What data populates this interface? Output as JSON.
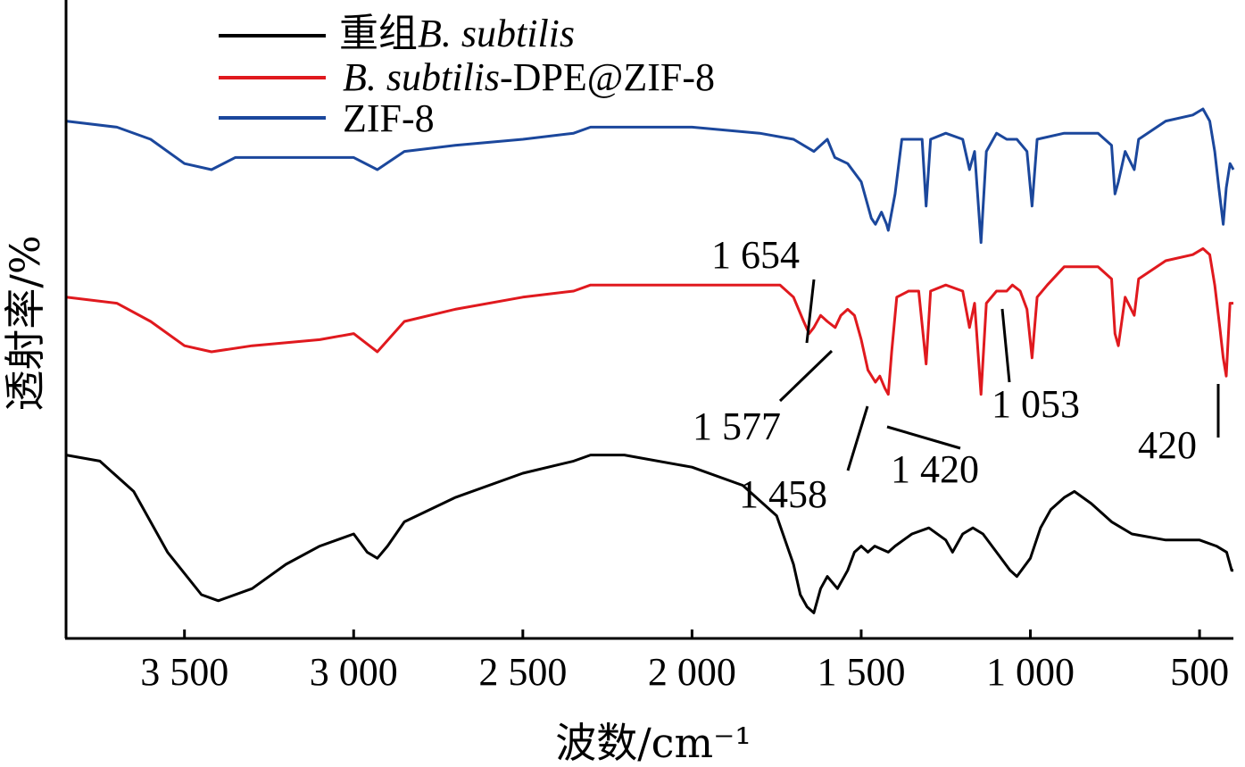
{
  "chart_data": {
    "type": "line",
    "title": "",
    "xlabel": "波数/cm⁻¹",
    "ylabel": "透射率/%",
    "xlim": [
      3850,
      400
    ],
    "x_reversed": true,
    "y_ticks_shown": false,
    "xticks": [
      {
        "value": 3500,
        "label": "3 500"
      },
      {
        "value": 3000,
        "label": "3 000"
      },
      {
        "value": 2500,
        "label": "2 500"
      },
      {
        "value": 2000,
        "label": "2 000"
      },
      {
        "value": 1500,
        "label": "1 500"
      },
      {
        "value": 1000,
        "label": "1 000"
      },
      {
        "value": 500,
        "label": "500"
      }
    ],
    "legend": {
      "placement": "top-left",
      "entries": [
        {
          "prefix": "重组",
          "italic": "B. subtilis",
          "suffix": "",
          "color": "#000000"
        },
        {
          "prefix": "",
          "italic": "B. subtilis",
          "suffix": "-DPE@ZIF-8",
          "color": "#e0191e"
        },
        {
          "prefix": "",
          "italic": "",
          "suffix": "ZIF-8",
          "color": "#1b479c"
        }
      ]
    },
    "series": [
      {
        "name": "ZIF-8",
        "color": "#1b479c",
        "points": [
          [
            3850,
            0.83
          ],
          [
            3700,
            0.82
          ],
          [
            3600,
            0.8
          ],
          [
            3500,
            0.76
          ],
          [
            3420,
            0.75
          ],
          [
            3350,
            0.77
          ],
          [
            3200,
            0.77
          ],
          [
            3000,
            0.77
          ],
          [
            2930,
            0.75
          ],
          [
            2850,
            0.78
          ],
          [
            2700,
            0.79
          ],
          [
            2500,
            0.8
          ],
          [
            2350,
            0.81
          ],
          [
            2300,
            0.82
          ],
          [
            2000,
            0.82
          ],
          [
            1800,
            0.81
          ],
          [
            1700,
            0.8
          ],
          [
            1640,
            0.78
          ],
          [
            1600,
            0.8
          ],
          [
            1578,
            0.77
          ],
          [
            1540,
            0.76
          ],
          [
            1500,
            0.73
          ],
          [
            1470,
            0.67
          ],
          [
            1458,
            0.66
          ],
          [
            1440,
            0.68
          ],
          [
            1425,
            0.66
          ],
          [
            1420,
            0.65
          ],
          [
            1400,
            0.71
          ],
          [
            1380,
            0.8
          ],
          [
            1350,
            0.8
          ],
          [
            1320,
            0.8
          ],
          [
            1308,
            0.69
          ],
          [
            1295,
            0.8
          ],
          [
            1250,
            0.81
          ],
          [
            1200,
            0.8
          ],
          [
            1180,
            0.75
          ],
          [
            1165,
            0.78
          ],
          [
            1146,
            0.63
          ],
          [
            1130,
            0.78
          ],
          [
            1100,
            0.81
          ],
          [
            1070,
            0.8
          ],
          [
            1040,
            0.8
          ],
          [
            1010,
            0.78
          ],
          [
            995,
            0.69
          ],
          [
            980,
            0.8
          ],
          [
            900,
            0.81
          ],
          [
            800,
            0.81
          ],
          [
            760,
            0.79
          ],
          [
            750,
            0.71
          ],
          [
            740,
            0.73
          ],
          [
            720,
            0.78
          ],
          [
            693,
            0.75
          ],
          [
            680,
            0.8
          ],
          [
            600,
            0.83
          ],
          [
            520,
            0.84
          ],
          [
            490,
            0.85
          ],
          [
            470,
            0.83
          ],
          [
            455,
            0.78
          ],
          [
            443,
            0.72
          ],
          [
            430,
            0.66
          ],
          [
            421,
            0.72
          ],
          [
            410,
            0.76
          ],
          [
            400,
            0.75
          ]
        ]
      },
      {
        "name": "B. subtilis-DPE@ZIF-8",
        "color": "#e0191e",
        "points": [
          [
            3850,
            0.54
          ],
          [
            3700,
            0.53
          ],
          [
            3600,
            0.5
          ],
          [
            3500,
            0.46
          ],
          [
            3420,
            0.45
          ],
          [
            3300,
            0.46
          ],
          [
            3100,
            0.47
          ],
          [
            3000,
            0.48
          ],
          [
            2930,
            0.45
          ],
          [
            2850,
            0.5
          ],
          [
            2700,
            0.52
          ],
          [
            2500,
            0.54
          ],
          [
            2350,
            0.55
          ],
          [
            2300,
            0.56
          ],
          [
            2000,
            0.56
          ],
          [
            1800,
            0.56
          ],
          [
            1740,
            0.56
          ],
          [
            1700,
            0.54
          ],
          [
            1670,
            0.5
          ],
          [
            1654,
            0.48
          ],
          [
            1640,
            0.49
          ],
          [
            1620,
            0.51
          ],
          [
            1600,
            0.5
          ],
          [
            1577,
            0.49
          ],
          [
            1560,
            0.51
          ],
          [
            1540,
            0.52
          ],
          [
            1520,
            0.51
          ],
          [
            1500,
            0.47
          ],
          [
            1480,
            0.42
          ],
          [
            1458,
            0.4
          ],
          [
            1445,
            0.41
          ],
          [
            1430,
            0.39
          ],
          [
            1420,
            0.38
          ],
          [
            1410,
            0.45
          ],
          [
            1395,
            0.54
          ],
          [
            1360,
            0.55
          ],
          [
            1330,
            0.55
          ],
          [
            1308,
            0.43
          ],
          [
            1295,
            0.55
          ],
          [
            1250,
            0.56
          ],
          [
            1200,
            0.55
          ],
          [
            1180,
            0.49
          ],
          [
            1165,
            0.53
          ],
          [
            1146,
            0.38
          ],
          [
            1130,
            0.53
          ],
          [
            1100,
            0.55
          ],
          [
            1070,
            0.55
          ],
          [
            1053,
            0.56
          ],
          [
            1030,
            0.55
          ],
          [
            1010,
            0.52
          ],
          [
            995,
            0.44
          ],
          [
            980,
            0.54
          ],
          [
            950,
            0.56
          ],
          [
            900,
            0.59
          ],
          [
            800,
            0.59
          ],
          [
            760,
            0.57
          ],
          [
            750,
            0.48
          ],
          [
            740,
            0.46
          ],
          [
            720,
            0.54
          ],
          [
            693,
            0.51
          ],
          [
            680,
            0.57
          ],
          [
            600,
            0.6
          ],
          [
            520,
            0.61
          ],
          [
            490,
            0.62
          ],
          [
            470,
            0.61
          ],
          [
            455,
            0.56
          ],
          [
            440,
            0.49
          ],
          [
            430,
            0.44
          ],
          [
            421,
            0.41
          ],
          [
            410,
            0.53
          ],
          [
            400,
            0.53
          ]
        ]
      },
      {
        "name": "重组B. subtilis",
        "color": "#000000",
        "points": [
          [
            3850,
            0.28
          ],
          [
            3750,
            0.27
          ],
          [
            3650,
            0.22
          ],
          [
            3550,
            0.12
          ],
          [
            3450,
            0.05
          ],
          [
            3400,
            0.04
          ],
          [
            3300,
            0.06
          ],
          [
            3200,
            0.1
          ],
          [
            3100,
            0.13
          ],
          [
            3000,
            0.15
          ],
          [
            2960,
            0.12
          ],
          [
            2930,
            0.11
          ],
          [
            2900,
            0.13
          ],
          [
            2850,
            0.17
          ],
          [
            2700,
            0.21
          ],
          [
            2500,
            0.25
          ],
          [
            2350,
            0.27
          ],
          [
            2300,
            0.28
          ],
          [
            2200,
            0.28
          ],
          [
            2000,
            0.26
          ],
          [
            1850,
            0.23
          ],
          [
            1750,
            0.18
          ],
          [
            1700,
            0.1
          ],
          [
            1680,
            0.05
          ],
          [
            1660,
            0.03
          ],
          [
            1640,
            0.02
          ],
          [
            1620,
            0.06
          ],
          [
            1600,
            0.08
          ],
          [
            1570,
            0.06
          ],
          [
            1540,
            0.09
          ],
          [
            1520,
            0.12
          ],
          [
            1500,
            0.13
          ],
          [
            1480,
            0.12
          ],
          [
            1460,
            0.13
          ],
          [
            1420,
            0.12
          ],
          [
            1400,
            0.13
          ],
          [
            1350,
            0.15
          ],
          [
            1300,
            0.16
          ],
          [
            1250,
            0.14
          ],
          [
            1230,
            0.12
          ],
          [
            1200,
            0.15
          ],
          [
            1170,
            0.16
          ],
          [
            1140,
            0.15
          ],
          [
            1100,
            0.12
          ],
          [
            1060,
            0.09
          ],
          [
            1040,
            0.08
          ],
          [
            1000,
            0.11
          ],
          [
            970,
            0.16
          ],
          [
            940,
            0.19
          ],
          [
            900,
            0.21
          ],
          [
            870,
            0.22
          ],
          [
            820,
            0.2
          ],
          [
            760,
            0.17
          ],
          [
            700,
            0.15
          ],
          [
            600,
            0.14
          ],
          [
            500,
            0.14
          ],
          [
            450,
            0.13
          ],
          [
            420,
            0.12
          ],
          [
            405,
            0.09
          ],
          [
            400,
            0.09
          ]
        ]
      }
    ],
    "annotations": [
      {
        "label": "1 654"
      },
      {
        "label": "1 577"
      },
      {
        "label": "1 458"
      },
      {
        "label": "1 420"
      },
      {
        "label": "1 053"
      },
      {
        "label": "420"
      }
    ]
  }
}
